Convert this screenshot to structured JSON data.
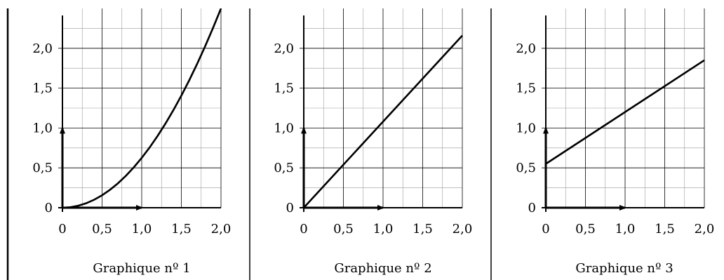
{
  "chart_data": [
    {
      "type": "line",
      "title": "Graphique nº 1",
      "x": [
        0,
        0.1,
        0.2,
        0.3,
        0.4,
        0.5,
        0.6,
        0.7,
        0.8,
        0.9,
        1.0,
        1.1,
        1.2,
        1.3,
        1.4,
        1.5,
        1.6,
        1.7,
        1.8,
        1.9,
        2.0
      ],
      "y": [
        0,
        0.00625,
        0.025,
        0.05625,
        0.1,
        0.15625,
        0.225,
        0.30625,
        0.4,
        0.50625,
        0.625,
        0.75625,
        0.9,
        1.05625,
        1.225,
        1.40625,
        1.6,
        1.80625,
        2.025,
        2.25625,
        2.5
      ],
      "xlim": [
        0,
        2.0
      ],
      "ylim": [
        0,
        2.5
      ],
      "xticks": [
        "0",
        "0,5",
        "1,0",
        "1,5",
        "2,0"
      ],
      "yticks": [
        "0",
        "0,5",
        "1,0",
        "1,5",
        "2,0"
      ],
      "grid": true
    },
    {
      "type": "line",
      "title": "Graphique nº 2",
      "x": [
        0,
        2.0
      ],
      "y": [
        0,
        2.16
      ],
      "xlim": [
        0,
        2.0
      ],
      "ylim": [
        0,
        2.5
      ],
      "xticks": [
        "0",
        "0,5",
        "1,0",
        "1,5",
        "2,0"
      ],
      "yticks": [
        "0",
        "0,5",
        "1,0",
        "1,5",
        "2,0"
      ],
      "grid": true
    },
    {
      "type": "line",
      "title": "Graphique nº 3",
      "x": [
        0,
        2.0
      ],
      "y": [
        0.55,
        1.85
      ],
      "xlim": [
        0,
        2.0
      ],
      "ylim": [
        0,
        2.5
      ],
      "xticks": [
        "0",
        "0,5",
        "1,0",
        "1,5",
        "2,0"
      ],
      "yticks": [
        "0",
        "0,5",
        "1,0",
        "1,5",
        "2,0"
      ],
      "grid": true
    }
  ]
}
